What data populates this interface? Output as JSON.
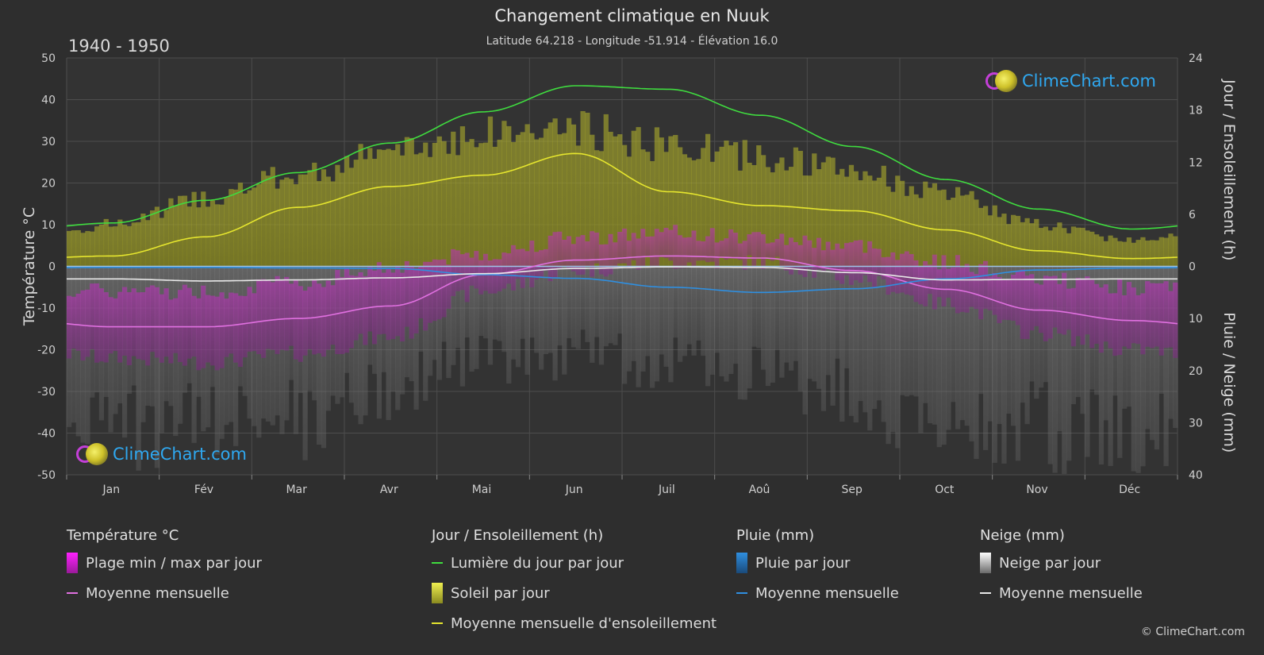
{
  "header": {
    "title": "Changement climatique en Nuuk",
    "subtitle": "Latitude 64.218 - Longitude -51.914 - Élévation 16.0",
    "period": "1940 - 1950"
  },
  "branding": {
    "logo_text": "ClimeChart.com",
    "credit": "© ClimeChart.com"
  },
  "chart_data": {
    "type": "line",
    "months": [
      "Jan",
      "Fév",
      "Mar",
      "Avr",
      "Mai",
      "Jun",
      "Juil",
      "Aoû",
      "Sep",
      "Oct",
      "Nov",
      "Déc"
    ],
    "y_left": {
      "label": "Température °C",
      "range": [
        -50,
        50
      ],
      "ticks": [
        -50,
        -40,
        -30,
        -20,
        -10,
        0,
        10,
        20,
        30,
        40,
        50
      ]
    },
    "y_right_top": {
      "label": "Jour / Ensoleillement (h)",
      "range": [
        0,
        24
      ],
      "ticks": [
        0,
        6,
        12,
        18,
        24
      ]
    },
    "y_right_bottom": {
      "label": "Pluie / Neige (mm)",
      "range": [
        0,
        40
      ],
      "ticks": [
        0,
        10,
        20,
        30,
        40
      ]
    },
    "grid": true,
    "series": [
      {
        "name": "Lumière du jour par jour",
        "unit": "h",
        "color": "#3fdc3f",
        "values": [
          5.0,
          7.6,
          10.8,
          14.2,
          17.8,
          20.8,
          20.4,
          17.4,
          13.8,
          10.0,
          6.6,
          4.3
        ]
      },
      {
        "name": "Moyenne mensuelle d'ensoleillement",
        "unit": "h",
        "color": "#e6e62e",
        "values": [
          1.2,
          3.4,
          6.8,
          9.2,
          10.5,
          13.0,
          8.6,
          7.0,
          6.4,
          4.2,
          1.8,
          0.9
        ]
      },
      {
        "name": "Moyenne mensuelle (température)",
        "unit": "°C",
        "color": "#e070e0",
        "values": [
          -14.5,
          -14.5,
          -12.5,
          -9.5,
          -2.0,
          1.5,
          2.5,
          2.0,
          -1.0,
          -5.5,
          -10.5,
          -13.0
        ]
      },
      {
        "name": "Moyenne mensuelle (pluie)",
        "unit": "mm",
        "color": "#2f8fe0",
        "values": [
          0.2,
          0.2,
          0.3,
          0.4,
          1.6,
          2.3,
          4.0,
          5.0,
          4.3,
          2.4,
          0.7,
          0.3
        ]
      },
      {
        "name": "Moyenne mensuelle (neige)",
        "unit": "mm",
        "color": "#e8e8e8",
        "values": [
          2.4,
          2.8,
          2.6,
          2.2,
          1.4,
          0.4,
          0.1,
          0.2,
          1.2,
          2.6,
          2.5,
          2.4
        ]
      }
    ],
    "daily_bands": {
      "temp_max": [
        -6,
        -6,
        -4,
        0,
        3,
        7,
        8,
        7,
        5,
        1,
        -3,
        -5
      ],
      "temp_min": [
        -22,
        -23,
        -21,
        -17,
        -6,
        -1,
        1,
        1,
        -3,
        -9,
        -16,
        -20
      ],
      "sunshine_max_h": [
        5.5,
        9.0,
        12.0,
        15.0,
        17.5,
        18.0,
        16.0,
        14.5,
        12.5,
        9.5,
        5.5,
        3.5
      ],
      "rain_snow_max_mm": [
        40,
        40,
        38,
        30,
        24,
        22,
        24,
        26,
        32,
        40,
        40,
        40
      ]
    }
  },
  "legend": {
    "groups": [
      {
        "title": "Température °C",
        "items": [
          {
            "label": "Plage min / max par jour",
            "kind": "box",
            "color": "#d020d0"
          },
          {
            "label": "Moyenne mensuelle",
            "kind": "line",
            "color": "#e070e0"
          }
        ]
      },
      {
        "title": "Jour / Ensoleillement (h)",
        "items": [
          {
            "label": "Lumière du jour par jour",
            "kind": "line",
            "color": "#3fdc3f"
          },
          {
            "label": "Soleil par jour",
            "kind": "box",
            "color": "#d8d82a"
          },
          {
            "label": "Moyenne mensuelle d'ensoleillement",
            "kind": "line",
            "color": "#e6e62e"
          }
        ]
      },
      {
        "title": "Pluie (mm)",
        "items": [
          {
            "label": "Pluie par jour",
            "kind": "box",
            "color": "#2f8fe0"
          },
          {
            "label": "Moyenne mensuelle",
            "kind": "line",
            "color": "#2f8fe0"
          }
        ]
      },
      {
        "title": "Neige (mm)",
        "items": [
          {
            "label": "Neige par jour",
            "kind": "box",
            "color": "#e8e8e8"
          },
          {
            "label": "Moyenne mensuelle",
            "kind": "line",
            "color": "#e8e8e8"
          }
        ]
      }
    ]
  }
}
